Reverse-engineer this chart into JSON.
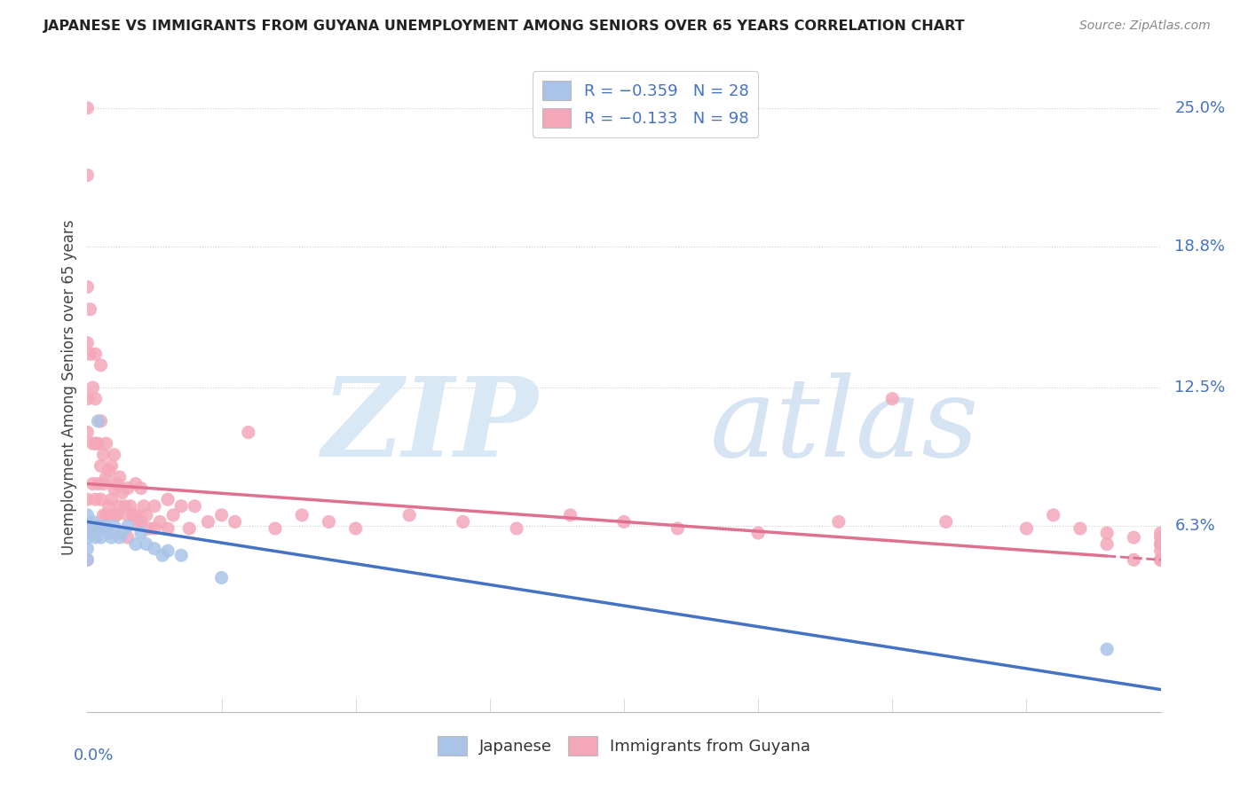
{
  "title": "JAPANESE VS IMMIGRANTS FROM GUYANA UNEMPLOYMENT AMONG SENIORS OVER 65 YEARS CORRELATION CHART",
  "source": "Source: ZipAtlas.com",
  "xlabel_bottom_left": "0.0%",
  "ylabel": "Unemployment Among Seniors over 65 years",
  "ytick_labels": [
    "25.0%",
    "18.8%",
    "12.5%",
    "6.3%"
  ],
  "ytick_values": [
    0.25,
    0.188,
    0.125,
    0.063
  ],
  "xlim": [
    0.0,
    0.4
  ],
  "ylim": [
    -0.02,
    0.27
  ],
  "color_japanese": "#aac4e8",
  "color_guyana": "#f4a7b9",
  "color_japanese_line": "#4472c4",
  "color_guyana_line": "#e07090",
  "color_axis_labels": "#4472c4",
  "background_color": "#ffffff",
  "jap_line_x0": 0.0,
  "jap_line_y0": 0.065,
  "jap_line_x1": 0.4,
  "jap_line_y1": -0.01,
  "guy_line_x0": 0.0,
  "guy_line_y0": 0.082,
  "guy_line_x1": 0.4,
  "guy_line_y1": 0.048,
  "japanese_x": [
    0.0,
    0.0,
    0.0,
    0.0,
    0.0,
    0.002,
    0.002,
    0.003,
    0.003,
    0.004,
    0.005,
    0.005,
    0.007,
    0.008,
    0.009,
    0.01,
    0.012,
    0.013,
    0.015,
    0.018,
    0.02,
    0.022,
    0.025,
    0.028,
    0.03,
    0.035,
    0.05,
    0.38
  ],
  "japanese_y": [
    0.068,
    0.063,
    0.058,
    0.053,
    0.048,
    0.065,
    0.06,
    0.063,
    0.058,
    0.11,
    0.063,
    0.058,
    0.063,
    0.06,
    0.058,
    0.063,
    0.058,
    0.06,
    0.063,
    0.055,
    0.06,
    0.055,
    0.053,
    0.05,
    0.052,
    0.05,
    0.04,
    0.008
  ],
  "guyana_x": [
    0.0,
    0.0,
    0.0,
    0.0,
    0.0,
    0.0,
    0.0,
    0.0,
    0.001,
    0.001,
    0.002,
    0.002,
    0.002,
    0.002,
    0.003,
    0.003,
    0.003,
    0.003,
    0.004,
    0.004,
    0.005,
    0.005,
    0.005,
    0.005,
    0.005,
    0.006,
    0.006,
    0.006,
    0.007,
    0.007,
    0.007,
    0.008,
    0.008,
    0.009,
    0.009,
    0.01,
    0.01,
    0.01,
    0.011,
    0.011,
    0.012,
    0.012,
    0.013,
    0.014,
    0.015,
    0.015,
    0.015,
    0.016,
    0.017,
    0.018,
    0.018,
    0.019,
    0.02,
    0.02,
    0.021,
    0.022,
    0.023,
    0.025,
    0.025,
    0.027,
    0.03,
    0.03,
    0.032,
    0.035,
    0.038,
    0.04,
    0.045,
    0.05,
    0.055,
    0.06,
    0.07,
    0.08,
    0.09,
    0.1,
    0.12,
    0.14,
    0.16,
    0.18,
    0.2,
    0.22,
    0.25,
    0.28,
    0.3,
    0.32,
    0.35,
    0.36,
    0.37,
    0.38,
    0.38,
    0.39,
    0.39,
    0.4,
    0.4,
    0.4,
    0.4,
    0.4,
    0.4,
    0.4
  ],
  "guyana_y": [
    0.25,
    0.22,
    0.17,
    0.145,
    0.12,
    0.105,
    0.075,
    0.048,
    0.16,
    0.14,
    0.125,
    0.1,
    0.082,
    0.062,
    0.14,
    0.12,
    0.1,
    0.075,
    0.1,
    0.082,
    0.135,
    0.11,
    0.09,
    0.075,
    0.063,
    0.095,
    0.082,
    0.068,
    0.1,
    0.085,
    0.068,
    0.088,
    0.072,
    0.09,
    0.075,
    0.095,
    0.08,
    0.068,
    0.082,
    0.068,
    0.085,
    0.072,
    0.078,
    0.072,
    0.08,
    0.068,
    0.058,
    0.072,
    0.068,
    0.082,
    0.068,
    0.065,
    0.08,
    0.065,
    0.072,
    0.068,
    0.062,
    0.072,
    0.062,
    0.065,
    0.075,
    0.062,
    0.068,
    0.072,
    0.062,
    0.072,
    0.065,
    0.068,
    0.065,
    0.105,
    0.062,
    0.068,
    0.065,
    0.062,
    0.068,
    0.065,
    0.062,
    0.068,
    0.065,
    0.062,
    0.06,
    0.065,
    0.12,
    0.065,
    0.062,
    0.068,
    0.062,
    0.06,
    0.055,
    0.058,
    0.048,
    0.048,
    0.055,
    0.058,
    0.052,
    0.048,
    0.06,
    0.055
  ]
}
